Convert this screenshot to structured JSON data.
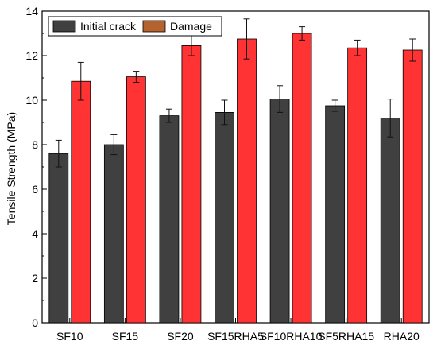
{
  "chart_data": {
    "type": "bar",
    "title": "",
    "xlabel": "",
    "ylabel": "Tensile Strength (MPa)",
    "ylim": [
      0,
      14
    ],
    "yticks": [
      0,
      2,
      4,
      6,
      8,
      10,
      12,
      14
    ],
    "ytick_labels": [
      "0",
      "2",
      "4",
      "6",
      "8",
      "10",
      "12",
      "14"
    ],
    "categories": [
      "SF10",
      "SF15",
      "SF20",
      "SF15RHA5",
      "SF10RHA10",
      "SF5RHA15",
      "RHA20"
    ],
    "legend_position": "top-left",
    "series": [
      {
        "name": "Initial crack",
        "color": "#404040",
        "values": [
          7.6,
          8.0,
          9.3,
          9.45,
          10.05,
          9.75,
          9.2
        ],
        "errors": [
          0.6,
          0.45,
          0.3,
          0.55,
          0.6,
          0.25,
          0.85
        ]
      },
      {
        "name": "Damage",
        "color": "#ff3333",
        "legend_color": "#b5632e",
        "values": [
          10.85,
          11.05,
          12.45,
          12.75,
          13.0,
          12.35,
          12.25
        ],
        "errors": [
          0.85,
          0.25,
          0.45,
          0.9,
          0.3,
          0.35,
          0.5
        ]
      }
    ]
  }
}
